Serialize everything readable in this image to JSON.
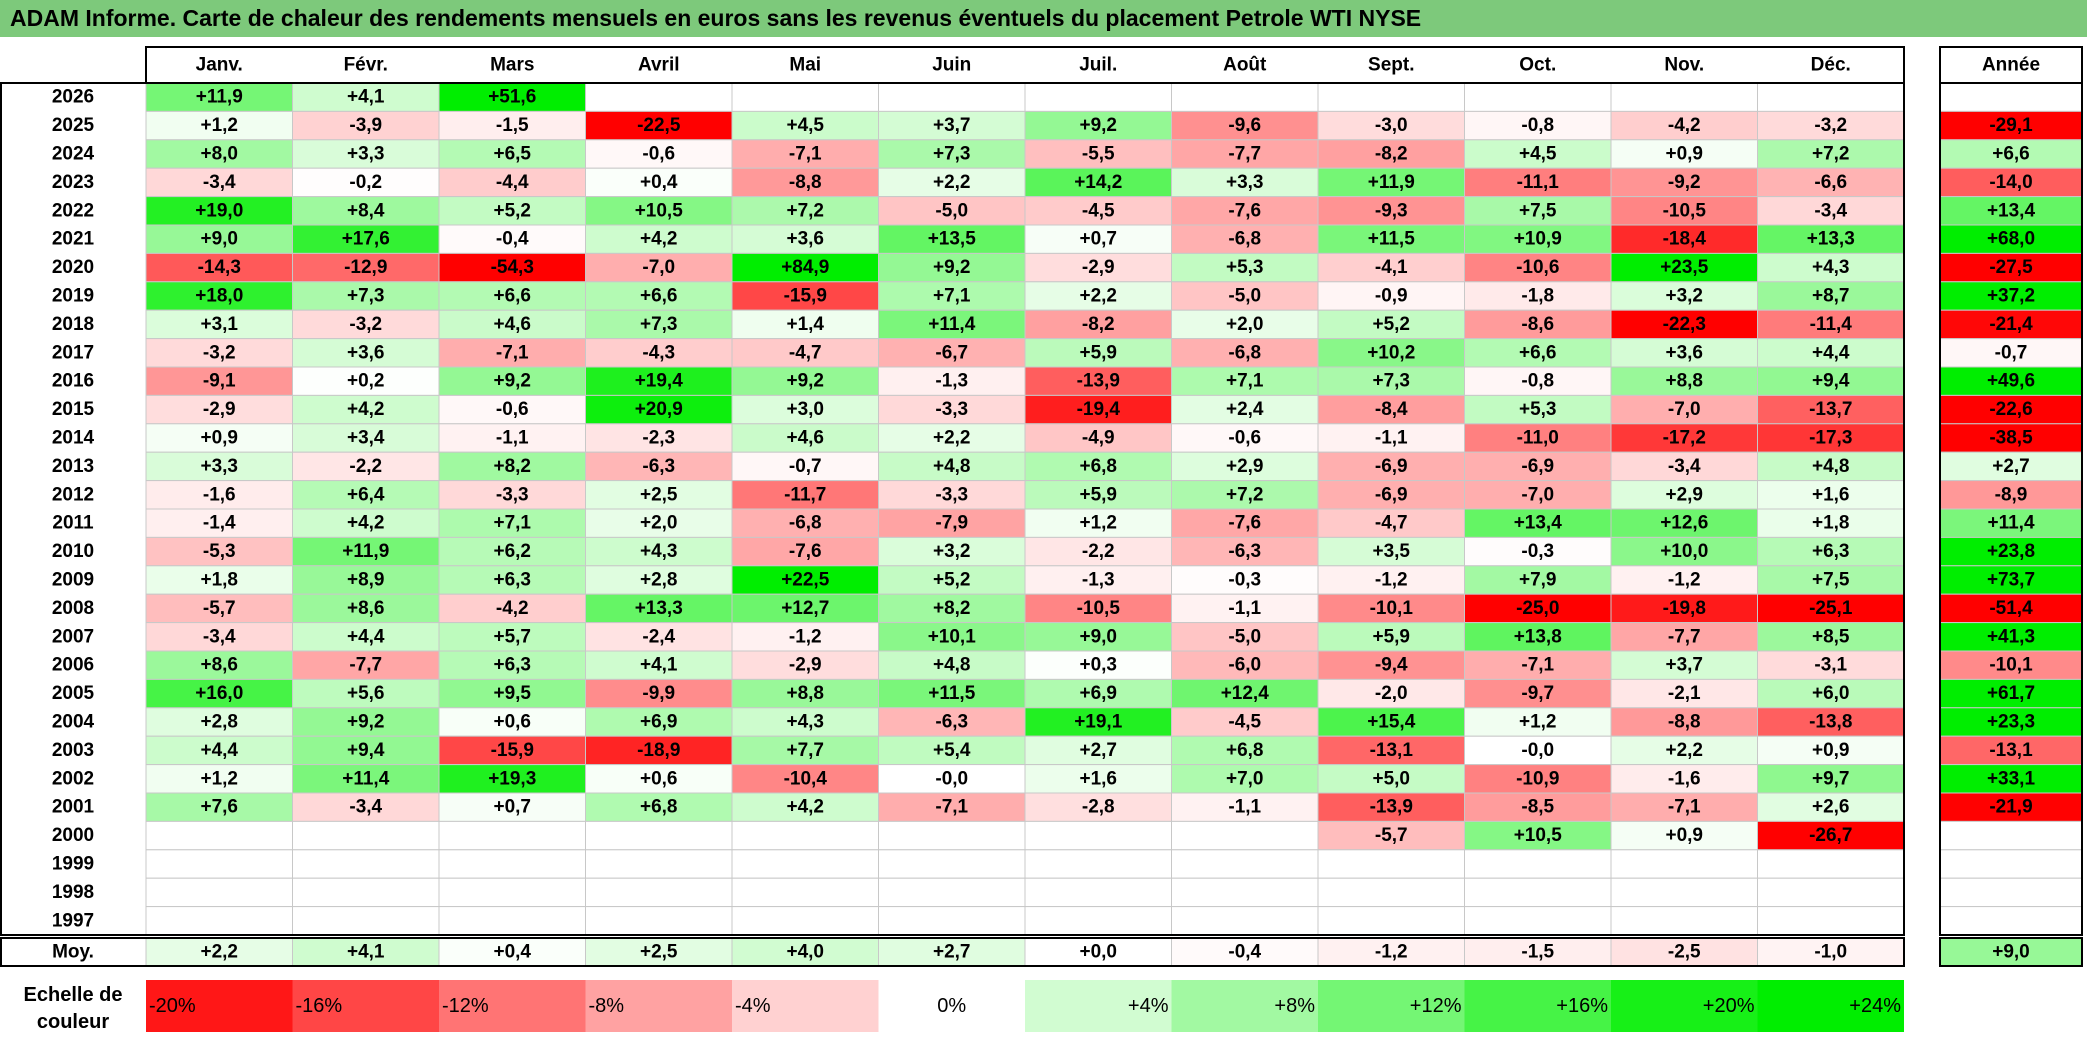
{
  "title": "ADAM Informe. Carte de chaleur des rendements mensuels en euros sans les revenus éventuels du placement Petrole WTI NYSE",
  "chart_data": {
    "type": "heatmap",
    "months": [
      "Janv.",
      "Févr.",
      "Mars",
      "Avril",
      "Mai",
      "Juin",
      "Juil.",
      "Août",
      "Sept.",
      "Oct.",
      "Nov.",
      "Déc."
    ],
    "annual_header": "Année",
    "rows": [
      {
        "year": "2026",
        "months": [
          11.9,
          4.1,
          51.6,
          null,
          null,
          null,
          null,
          null,
          null,
          null,
          null,
          null
        ],
        "annual": null
      },
      {
        "year": "2025",
        "months": [
          1.2,
          -3.9,
          -1.5,
          -22.5,
          4.5,
          3.7,
          9.2,
          -9.6,
          -3.0,
          -0.8,
          -4.2,
          -3.2
        ],
        "annual": -29.1
      },
      {
        "year": "2024",
        "months": [
          8.0,
          3.3,
          6.5,
          -0.6,
          -7.1,
          7.3,
          -5.5,
          -7.7,
          -8.2,
          4.5,
          0.9,
          7.2
        ],
        "annual": 6.6
      },
      {
        "year": "2023",
        "months": [
          -3.4,
          -0.2,
          -4.4,
          0.4,
          -8.8,
          2.2,
          14.2,
          3.3,
          11.9,
          -11.1,
          -9.2,
          -6.6
        ],
        "annual": -14.0
      },
      {
        "year": "2022",
        "months": [
          19.0,
          8.4,
          5.2,
          10.5,
          7.2,
          -5.0,
          -4.5,
          -7.6,
          -9.3,
          7.5,
          -10.5,
          -3.4
        ],
        "annual": 13.4
      },
      {
        "year": "2021",
        "months": [
          9.0,
          17.6,
          -0.4,
          4.2,
          3.6,
          13.5,
          0.7,
          -6.8,
          11.5,
          10.9,
          -18.4,
          13.3
        ],
        "annual": 68.0
      },
      {
        "year": "2020",
        "months": [
          -14.3,
          -12.9,
          -54.3,
          -7.0,
          84.9,
          9.2,
          -2.9,
          5.3,
          -4.1,
          -10.6,
          23.5,
          4.3
        ],
        "annual": -27.5
      },
      {
        "year": "2019",
        "months": [
          18.0,
          7.3,
          6.6,
          6.6,
          -15.9,
          7.1,
          2.2,
          -5.0,
          -0.9,
          -1.8,
          3.2,
          8.7
        ],
        "annual": 37.2
      },
      {
        "year": "2018",
        "months": [
          3.1,
          -3.2,
          4.6,
          7.3,
          1.4,
          11.4,
          -8.2,
          2.0,
          5.2,
          -8.6,
          -22.3,
          -11.4
        ],
        "annual": -21.4
      },
      {
        "year": "2017",
        "months": [
          -3.2,
          3.6,
          -7.1,
          -4.3,
          -4.7,
          -6.7,
          5.9,
          -6.8,
          10.2,
          6.6,
          3.6,
          4.4
        ],
        "annual": -0.7
      },
      {
        "year": "2016",
        "months": [
          -9.1,
          0.2,
          9.2,
          19.4,
          9.2,
          -1.3,
          -13.9,
          7.1,
          7.3,
          -0.8,
          8.8,
          9.4
        ],
        "annual": 49.6
      },
      {
        "year": "2015",
        "months": [
          -2.9,
          4.2,
          -0.6,
          20.9,
          3.0,
          -3.3,
          -19.4,
          2.4,
          -8.4,
          5.3,
          -7.0,
          -13.7
        ],
        "annual": -22.6
      },
      {
        "year": "2014",
        "months": [
          0.9,
          3.4,
          -1.1,
          -2.3,
          4.6,
          2.2,
          -4.9,
          -0.6,
          -1.1,
          -11.0,
          -17.2,
          -17.3
        ],
        "annual": -38.5
      },
      {
        "year": "2013",
        "months": [
          3.3,
          -2.2,
          8.2,
          -6.3,
          -0.7,
          4.8,
          6.8,
          2.9,
          -6.9,
          -6.9,
          -3.4,
          4.8
        ],
        "annual": 2.7
      },
      {
        "year": "2012",
        "months": [
          -1.6,
          6.4,
          -3.3,
          2.5,
          -11.7,
          -3.3,
          5.9,
          7.2,
          -6.9,
          -7.0,
          2.9,
          1.6
        ],
        "annual": -8.9
      },
      {
        "year": "2011",
        "months": [
          -1.4,
          4.2,
          7.1,
          2.0,
          -6.8,
          -7.9,
          1.2,
          -7.6,
          -4.7,
          13.4,
          12.6,
          1.8
        ],
        "annual": 11.4
      },
      {
        "year": "2010",
        "months": [
          -5.3,
          11.9,
          6.2,
          4.3,
          -7.6,
          3.2,
          -2.2,
          -6.3,
          3.5,
          -0.3,
          10.0,
          6.3
        ],
        "annual": 23.8
      },
      {
        "year": "2009",
        "months": [
          1.8,
          8.9,
          6.3,
          2.8,
          22.5,
          5.2,
          -1.3,
          -0.3,
          -1.2,
          7.9,
          -1.2,
          7.5
        ],
        "annual": 73.7
      },
      {
        "year": "2008",
        "months": [
          -5.7,
          8.6,
          -4.2,
          13.3,
          12.7,
          8.2,
          -10.5,
          -1.1,
          -10.1,
          -25.0,
          -19.8,
          -25.1
        ],
        "annual": -51.4
      },
      {
        "year": "2007",
        "months": [
          -3.4,
          4.4,
          5.7,
          -2.4,
          -1.2,
          10.1,
          9.0,
          -5.0,
          5.9,
          13.8,
          -7.7,
          8.5
        ],
        "annual": 41.3
      },
      {
        "year": "2006",
        "months": [
          8.6,
          -7.7,
          6.3,
          4.1,
          -2.9,
          4.8,
          0.3,
          -6.0,
          -9.4,
          -7.1,
          3.7,
          -3.1
        ],
        "annual": -10.1
      },
      {
        "year": "2005",
        "months": [
          16.0,
          5.6,
          9.5,
          -9.9,
          8.8,
          11.5,
          6.9,
          12.4,
          -2.0,
          -9.7,
          -2.1,
          6.0
        ],
        "annual": 61.7
      },
      {
        "year": "2004",
        "months": [
          2.8,
          9.2,
          0.6,
          6.9,
          4.3,
          -6.3,
          19.1,
          -4.5,
          15.4,
          1.2,
          -8.8,
          -13.8
        ],
        "annual": 23.3
      },
      {
        "year": "2003",
        "months": [
          4.4,
          9.4,
          -15.9,
          -18.9,
          7.7,
          5.4,
          2.7,
          6.8,
          -13.1,
          -0.0,
          2.2,
          0.9
        ],
        "annual": -13.1
      },
      {
        "year": "2002",
        "months": [
          1.2,
          11.4,
          19.3,
          0.6,
          -10.4,
          -0.0,
          1.6,
          7.0,
          5.0,
          -10.9,
          -1.6,
          9.7
        ],
        "annual": 33.1
      },
      {
        "year": "2001",
        "months": [
          7.6,
          -3.4,
          0.7,
          6.8,
          4.2,
          -7.1,
          -2.8,
          -1.1,
          -13.9,
          -8.5,
          -7.1,
          2.6
        ],
        "annual": -21.9
      },
      {
        "year": "2000",
        "months": [
          null,
          null,
          null,
          null,
          null,
          null,
          null,
          null,
          -5.7,
          10.5,
          0.9,
          -26.7
        ],
        "annual": null
      },
      {
        "year": "1999",
        "months": [
          null,
          null,
          null,
          null,
          null,
          null,
          null,
          null,
          null,
          null,
          null,
          null
        ],
        "annual": null
      },
      {
        "year": "1998",
        "months": [
          null,
          null,
          null,
          null,
          null,
          null,
          null,
          null,
          null,
          null,
          null,
          null
        ],
        "annual": null
      },
      {
        "year": "1997",
        "months": [
          null,
          null,
          null,
          null,
          null,
          null,
          null,
          null,
          null,
          null,
          null,
          null
        ],
        "annual": null
      }
    ],
    "average": {
      "label": "Moy.",
      "months": [
        2.2,
        4.1,
        0.4,
        2.5,
        4.0,
        2.7,
        0.0,
        -0.4,
        -1.2,
        -1.5,
        -2.5,
        -1.0
      ],
      "annual": 9.0
    },
    "color_scale": {
      "label": "Echelle de couleur",
      "steps": [
        -20,
        -16,
        -12,
        -8,
        -4,
        0,
        4,
        8,
        12,
        16,
        20,
        24
      ],
      "tick_labels": [
        "-20%",
        "-16%",
        "-12%",
        "-8%",
        "-4%",
        "0%",
        "+4%",
        "+8%",
        "+12%",
        "+16%",
        "+20%",
        "+24%"
      ],
      "negative_color": "#ff0000",
      "positive_color": "#00ee00",
      "neutral_color": "#ffffff"
    },
    "title_bar_color": "#7dc97b"
  }
}
